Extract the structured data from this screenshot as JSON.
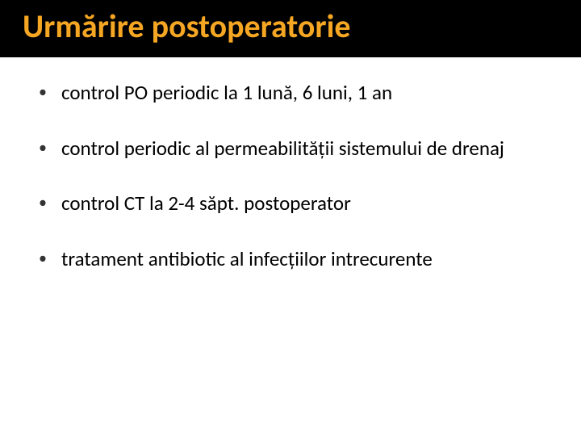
{
  "slide": {
    "title": "Urmărire postoperatorie",
    "title_color": "#f5a623",
    "title_fontsize": 40,
    "header_bg": "#000000",
    "background": "#ffffff",
    "bullet_color": "#333333",
    "text_color": "#000000",
    "bullet_fontsize": 25,
    "bullets": [
      "control PO periodic la 1 lună, 6 luni, 1 an",
      "control periodic al permeabilității sistemului de drenaj",
      "control CT la 2-4 săpt. postoperator",
      "tratament antibiotic al infecțiilor intrecurente"
    ]
  }
}
